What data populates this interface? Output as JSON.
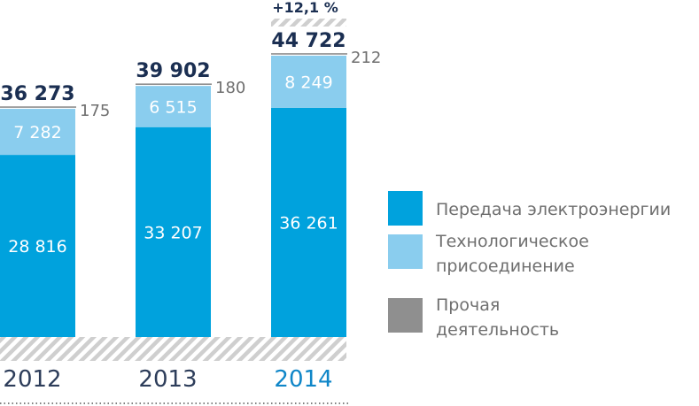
{
  "chart_data": {
    "type": "bar",
    "stacked": true,
    "categories": [
      "2012",
      "2013",
      "2014"
    ],
    "highlight_category": "2014",
    "series": [
      {
        "name": "Передача электроэнергии",
        "values": [
          28816,
          33207,
          36261
        ],
        "color": "#00a2dd"
      },
      {
        "name": "Технологическое присоединение",
        "values": [
          7282,
          6515,
          8249
        ],
        "color": "#8acdee"
      },
      {
        "name": "Прочая деятельность",
        "values": [
          175,
          180,
          212
        ],
        "color": "#8f8f8f"
      }
    ],
    "value_labels": {
      "main": [
        "28 816",
        "33 207",
        "36 261"
      ],
      "connection": [
        "7 282",
        "6 515",
        "8 249"
      ],
      "other": [
        "175",
        "180",
        "212"
      ]
    },
    "totals": [
      36273,
      39902,
      44722
    ],
    "total_labels": [
      "36 273",
      "39 902",
      "44 722"
    ],
    "growth_annotation": "+12,1 %",
    "ylim": [
      0,
      48000
    ],
    "grid": false,
    "legend_position": "right",
    "legend": [
      {
        "label_lines": [
          "Передача электроэнергии"
        ],
        "color": "#00a2dd"
      },
      {
        "label_lines": [
          "Технологическое",
          "присоединение"
        ],
        "color": "#8acdee"
      },
      {
        "label_lines": [
          "Прочая",
          "деятельность"
        ],
        "color": "#8f8f8f"
      }
    ],
    "colors": {
      "total_text": "#1b2f52",
      "year_text": "#2d3d5a",
      "year_highlight": "#0f86c8",
      "other_text": "#6f6f6f",
      "hatch": "#cfcfcf",
      "outline": "#b5b5b5"
    }
  }
}
